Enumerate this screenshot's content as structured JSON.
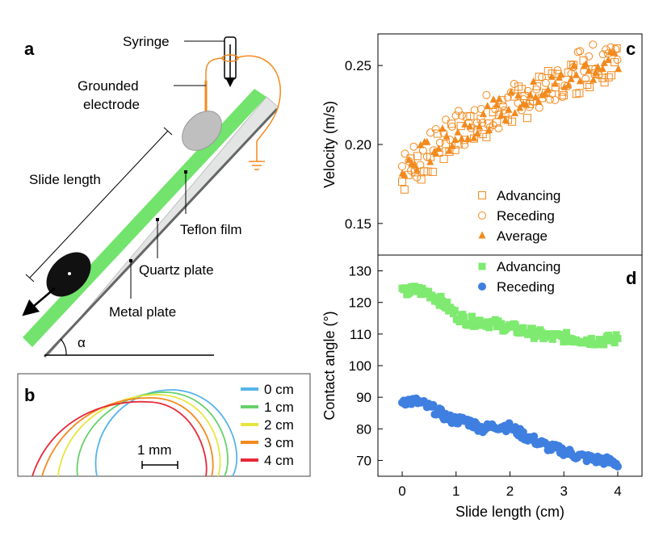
{
  "panels": {
    "a": {
      "label": "a",
      "syringe": "Syringe",
      "electrode_line1": "Grounded",
      "electrode_line2": "electrode",
      "slide_length": "Slide length",
      "teflon": "Teflon film",
      "quartz": "Quartz plate",
      "metal": "Metal plate",
      "angle": "α"
    },
    "b": {
      "label": "b",
      "scale_bar": "1 mm",
      "legend": [
        {
          "label": "0 cm",
          "color": "#56b4e9"
        },
        {
          "label": "1 cm",
          "color": "#66d16b"
        },
        {
          "label": "2 cm",
          "color": "#e6e640"
        },
        {
          "label": "3 cm",
          "color": "#f28a1e"
        },
        {
          "label": "4 cm",
          "color": "#e8283a"
        }
      ]
    },
    "c": {
      "label": "c"
    },
    "d": {
      "label": "d"
    }
  },
  "chart_data": [
    {
      "id": "c",
      "type": "scatter",
      "ylabel": "Velocity (m/s)",
      "xlabel": "",
      "xlim": [
        -0.45,
        4.45
      ],
      "ylim": [
        0.13,
        0.27
      ],
      "yticks": [
        0.15,
        0.2,
        0.25
      ],
      "ytick_labels": [
        "0.15",
        "0.20",
        "0.25"
      ],
      "legend_position": "bottom-center",
      "series": [
        {
          "name": "Advancing",
          "marker": "open-square",
          "color": "#f28a1e",
          "x0": 0.0,
          "x1": 4.0,
          "y_start": 0.175,
          "y_end": 0.255,
          "n": 70,
          "spread": 0.012
        },
        {
          "name": "Receding",
          "marker": "open-circle",
          "color": "#f28a1e",
          "x0": 0.0,
          "x1": 4.0,
          "y_start": 0.18,
          "y_end": 0.258,
          "n": 70,
          "spread": 0.013
        },
        {
          "name": "Average",
          "marker": "filled-triangle",
          "color": "#f28a1e",
          "x0": 0.0,
          "x1": 4.0,
          "y_start": 0.18,
          "y_end": 0.255,
          "n": 70,
          "spread": 0.009
        }
      ]
    },
    {
      "id": "d",
      "type": "scatter",
      "ylabel": "Contact angle (°)",
      "xlabel": "Slide length (cm)",
      "xlim": [
        -0.45,
        4.45
      ],
      "ylim": [
        65,
        135
      ],
      "yticks": [
        70,
        80,
        90,
        100,
        110,
        120,
        130
      ],
      "ytick_labels": [
        "70",
        "80",
        "90",
        "100",
        "110",
        "120",
        "130"
      ],
      "xticks": [
        0,
        1,
        2,
        3,
        4
      ],
      "xtick_labels": [
        "0",
        "1",
        "2",
        "3",
        "4"
      ],
      "legend_position": "top-center",
      "series": [
        {
          "name": "Advancing",
          "marker": "filled-square",
          "color": "#7fea70",
          "points": [
            [
              0,
              123
            ],
            [
              0.25,
              124
            ],
            [
              0.5,
              123
            ],
            [
              0.75,
              120
            ],
            [
              1.0,
              116
            ],
            [
              1.25,
              114
            ],
            [
              1.5,
              114
            ],
            [
              1.75,
              113
            ],
            [
              2.0,
              112
            ],
            [
              2.25,
              111
            ],
            [
              2.5,
              110
            ],
            [
              2.75,
              109
            ],
            [
              3.0,
              109
            ],
            [
              3.25,
              108.5
            ],
            [
              3.5,
              108
            ],
            [
              3.75,
              108
            ],
            [
              4.0,
              108.5
            ]
          ],
          "n": 140,
          "spread": 1.6
        },
        {
          "name": "Receding",
          "marker": "filled-circle",
          "color": "#3e7fe0",
          "points": [
            [
              0,
              89
            ],
            [
              0.3,
              88.5
            ],
            [
              0.6,
              86
            ],
            [
              0.9,
              83
            ],
            [
              1.2,
              82.5
            ],
            [
              1.5,
              80
            ],
            [
              1.75,
              81
            ],
            [
              2.0,
              80.5
            ],
            [
              2.25,
              78
            ],
            [
              2.5,
              76
            ],
            [
              2.75,
              74
            ],
            [
              3.0,
              73
            ],
            [
              3.25,
              71.5
            ],
            [
              3.5,
              70.5
            ],
            [
              3.75,
              70
            ],
            [
              4.0,
              69
            ]
          ],
          "n": 140,
          "spread": 1.4
        }
      ]
    }
  ]
}
